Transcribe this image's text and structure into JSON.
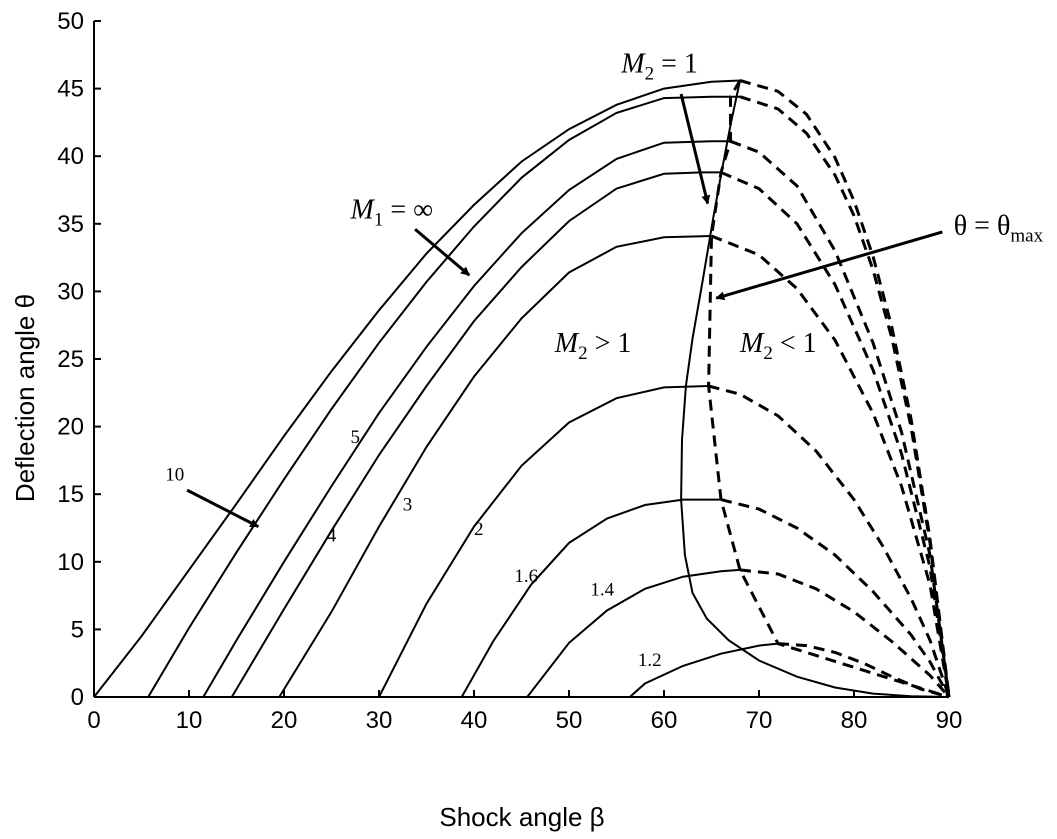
{
  "chart_data": {
    "type": "line",
    "title": "",
    "xlabel": "Shock angle β",
    "ylabel": "Deflection angle θ",
    "xlim": [
      0,
      90
    ],
    "ylim": [
      0,
      50
    ],
    "xticks": [
      0,
      10,
      20,
      30,
      40,
      50,
      60,
      70,
      80,
      90
    ],
    "yticks": [
      0,
      5,
      10,
      15,
      20,
      25,
      30,
      35,
      40,
      45,
      50
    ],
    "grid": false,
    "legend": "none",
    "colors": {
      "line": "#000000",
      "background": "#ffffff"
    },
    "series": [
      {
        "name": "∞",
        "strong_from": 68,
        "points": [
          [
            0,
            0
          ],
          [
            5,
            4.5
          ],
          [
            10,
            9.4
          ],
          [
            15,
            14.3
          ],
          [
            20,
            19.3
          ],
          [
            25,
            24.1
          ],
          [
            30,
            28.6
          ],
          [
            35,
            32.8
          ],
          [
            40,
            36.4
          ],
          [
            45,
            39.6
          ],
          [
            50,
            42.0
          ],
          [
            55,
            43.8
          ],
          [
            60,
            45.0
          ],
          [
            65,
            45.5
          ],
          [
            68,
            45.6
          ],
          [
            72,
            44.8
          ],
          [
            75,
            43.1
          ],
          [
            78,
            39.9
          ],
          [
            80,
            36.7
          ],
          [
            82,
            32.6
          ],
          [
            84,
            27.3
          ],
          [
            86,
            20.6
          ],
          [
            88,
            11.7
          ],
          [
            90,
            0
          ]
        ]
      },
      {
        "name": "10",
        "strong_from": 68,
        "points": [
          [
            5.7,
            0
          ],
          [
            10,
            5.1
          ],
          [
            15,
            10.7
          ],
          [
            20,
            16.1
          ],
          [
            25,
            21.3
          ],
          [
            30,
            26.2
          ],
          [
            35,
            30.7
          ],
          [
            40,
            34.8
          ],
          [
            45,
            38.4
          ],
          [
            50,
            41.2
          ],
          [
            55,
            43.2
          ],
          [
            60,
            44.3
          ],
          [
            65,
            44.4
          ],
          [
            68,
            44.4
          ],
          [
            72,
            43.5
          ],
          [
            75,
            41.7
          ],
          [
            78,
            38.6
          ],
          [
            80,
            35.6
          ],
          [
            82,
            31.6
          ],
          [
            84,
            26.5
          ],
          [
            86,
            20.0
          ],
          [
            88,
            11.4
          ],
          [
            90,
            0
          ]
        ]
      },
      {
        "name": "5",
        "strong_from": 67,
        "points": [
          [
            11.5,
            0
          ],
          [
            15,
            4.2
          ],
          [
            20,
            10.0
          ],
          [
            25,
            15.6
          ],
          [
            30,
            21.0
          ],
          [
            35,
            25.9
          ],
          [
            40,
            30.4
          ],
          [
            45,
            34.3
          ],
          [
            50,
            37.5
          ],
          [
            55,
            39.8
          ],
          [
            60,
            41.0
          ],
          [
            65,
            41.1
          ],
          [
            67,
            41.1
          ],
          [
            70,
            40.3
          ],
          [
            74,
            37.8
          ],
          [
            78,
            33.0
          ],
          [
            82,
            26.2
          ],
          [
            85,
            19.6
          ],
          [
            88,
            10.5
          ],
          [
            90,
            0
          ]
        ]
      },
      {
        "name": "4",
        "strong_from": 66,
        "points": [
          [
            14.5,
            0
          ],
          [
            20,
            6.5
          ],
          [
            25,
            12.3
          ],
          [
            30,
            17.9
          ],
          [
            35,
            23.0
          ],
          [
            40,
            27.8
          ],
          [
            45,
            31.8
          ],
          [
            50,
            35.2
          ],
          [
            55,
            37.6
          ],
          [
            60,
            38.7
          ],
          [
            64,
            38.8
          ],
          [
            66,
            38.8
          ],
          [
            70,
            37.6
          ],
          [
            74,
            35.0
          ],
          [
            78,
            30.5
          ],
          [
            82,
            24.2
          ],
          [
            85,
            18.0
          ],
          [
            88,
            9.6
          ],
          [
            90,
            0
          ]
        ]
      },
      {
        "name": "3",
        "strong_from": 65,
        "points": [
          [
            19.5,
            0
          ],
          [
            25,
            6.3
          ],
          [
            30,
            12.6
          ],
          [
            35,
            18.5
          ],
          [
            40,
            23.7
          ],
          [
            45,
            28.0
          ],
          [
            50,
            31.4
          ],
          [
            55,
            33.3
          ],
          [
            60,
            34.0
          ],
          [
            65,
            34.1
          ],
          [
            70,
            32.7
          ],
          [
            74,
            30.2
          ],
          [
            78,
            26.4
          ],
          [
            82,
            21.0
          ],
          [
            85,
            15.6
          ],
          [
            88,
            8.3
          ],
          [
            90,
            0
          ]
        ]
      },
      {
        "name": "2",
        "strong_from": 64.7,
        "points": [
          [
            30,
            0
          ],
          [
            35,
            6.9
          ],
          [
            40,
            12.6
          ],
          [
            45,
            17.1
          ],
          [
            50,
            20.3
          ],
          [
            55,
            22.1
          ],
          [
            60,
            22.9
          ],
          [
            64.7,
            23.0
          ],
          [
            68,
            22.4
          ],
          [
            72,
            20.8
          ],
          [
            76,
            18.2
          ],
          [
            80,
            14.6
          ],
          [
            83,
            11.2
          ],
          [
            86,
            7.3
          ],
          [
            88,
            4.2
          ],
          [
            90,
            0
          ]
        ]
      },
      {
        "name": "1.6",
        "strong_from": 66,
        "points": [
          [
            38.7,
            0
          ],
          [
            42,
            4.1
          ],
          [
            46,
            8.3
          ],
          [
            50,
            11.4
          ],
          [
            54,
            13.2
          ],
          [
            58,
            14.2
          ],
          [
            62,
            14.6
          ],
          [
            66,
            14.6
          ],
          [
            70,
            13.9
          ],
          [
            74,
            12.5
          ],
          [
            78,
            10.5
          ],
          [
            82,
            7.8
          ],
          [
            86,
            4.6
          ],
          [
            88,
            2.6
          ],
          [
            90,
            0
          ]
        ]
      },
      {
        "name": "1.4",
        "strong_from": 68,
        "points": [
          [
            45.6,
            0
          ],
          [
            50,
            4.0
          ],
          [
            54,
            6.4
          ],
          [
            58,
            8.0
          ],
          [
            62,
            8.9
          ],
          [
            66,
            9.3
          ],
          [
            68,
            9.4
          ],
          [
            72,
            9.1
          ],
          [
            76,
            8.0
          ],
          [
            80,
            6.3
          ],
          [
            84,
            4.1
          ],
          [
            88,
            1.6
          ],
          [
            90,
            0
          ]
        ]
      },
      {
        "name": "1.2",
        "strong_from": 72,
        "points": [
          [
            56.4,
            0
          ],
          [
            58,
            1.0
          ],
          [
            62,
            2.3
          ],
          [
            66,
            3.2
          ],
          [
            70,
            3.8
          ],
          [
            72,
            3.95
          ],
          [
            75,
            3.8
          ],
          [
            78,
            3.3
          ],
          [
            81,
            2.5
          ],
          [
            84,
            1.5
          ],
          [
            87,
            0.6
          ],
          [
            90,
            0
          ]
        ]
      },
      {
        "name": "M2 = 1",
        "points": [
          [
            68,
            45.6
          ],
          [
            67,
            42.3
          ],
          [
            66,
            38.6
          ],
          [
            65.2,
            35.5
          ],
          [
            64,
            30.5
          ],
          [
            63,
            26.5
          ],
          [
            62.3,
            23.0
          ],
          [
            61.9,
            19.0
          ],
          [
            61.8,
            14.6
          ],
          [
            62.2,
            10.5
          ],
          [
            63,
            7.7
          ],
          [
            64.5,
            5.8
          ],
          [
            66.8,
            4.2
          ],
          [
            70,
            2.7
          ],
          [
            74,
            1.5
          ],
          [
            78,
            0.7
          ],
          [
            82,
            0.25
          ],
          [
            86,
            0.05
          ],
          [
            90,
            0
          ]
        ]
      },
      {
        "name": "θ = θmax",
        "style": "dashed",
        "points": [
          [
            68,
            45.6
          ],
          [
            67,
            44.4
          ],
          [
            67,
            41.1
          ],
          [
            66,
            38.8
          ],
          [
            65,
            34.1
          ],
          [
            64.7,
            23.0
          ],
          [
            66,
            14.6
          ],
          [
            68,
            9.4
          ],
          [
            72,
            3.95
          ],
          [
            90,
            0
          ]
        ]
      }
    ],
    "annotations": [
      {
        "text_parts": [
          "M",
          "2",
          " = 1"
        ],
        "x": 55.5,
        "y": 46.2,
        "arrow_to": [
          64.6,
          36.5
        ]
      },
      {
        "text_parts": [
          "M",
          "1",
          " = ∞"
        ],
        "x": 27,
        "y": 35.4,
        "arrow_to": [
          39.5,
          31.2
        ]
      },
      {
        "text_parts": [
          "θ = θ",
          "max"
        ],
        "x": 90.5,
        "y": 34.2,
        "arrow_to": [
          65.5,
          29.5
        ]
      },
      {
        "text_parts": [
          "M",
          "2",
          " > 1"
        ],
        "x": 48.5,
        "y": 25.5
      },
      {
        "text_parts": [
          "M",
          "2",
          " < 1"
        ],
        "x": 68,
        "y": 25.5
      }
    ],
    "curve_labels": [
      {
        "text": "10",
        "x": 8.5,
        "y": 16.0,
        "arrow_to": [
          17.3,
          12.6
        ]
      },
      {
        "text": "5",
        "x": 27.5,
        "y": 18.8
      },
      {
        "text": "4",
        "x": 25,
        "y": 11.5
      },
      {
        "text": "3",
        "x": 33,
        "y": 13.8
      },
      {
        "text": "2",
        "x": 40.5,
        "y": 12.0
      },
      {
        "text": "1.6",
        "x": 45.5,
        "y": 8.5
      },
      {
        "text": "1.4",
        "x": 53.5,
        "y": 7.5
      },
      {
        "text": "1.2",
        "x": 58.5,
        "y": 2.3
      }
    ]
  }
}
